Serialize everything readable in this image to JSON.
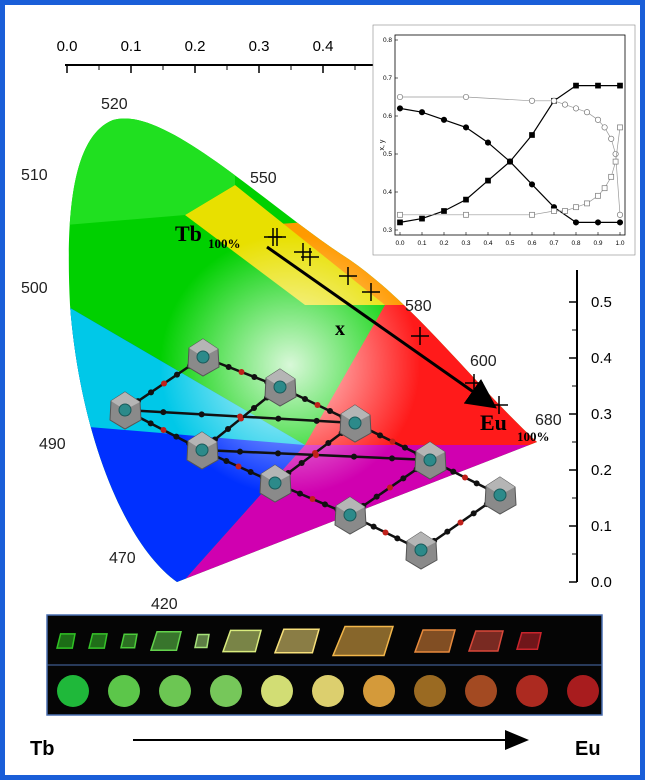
{
  "colors": {
    "frame": "#1a5ed8",
    "arrow": "#000000",
    "strip_bg": "#050505",
    "strip_border": "#4a6fb0"
  },
  "cie": {
    "top_ticks": [
      "0.0",
      "0.1",
      "0.2",
      "0.3",
      "0.4"
    ],
    "right_ticks": [
      "0.5",
      "0.4",
      "0.3",
      "0.2",
      "0.1",
      "0.0"
    ],
    "wavelengths": [
      "520",
      "510",
      "550",
      "500",
      "580",
      "600",
      "680",
      "490",
      "470",
      "420"
    ],
    "start_label": "Tb",
    "start_sub": "100%",
    "end_label": "Eu",
    "end_sub": "100%",
    "arrow_label": "x"
  },
  "chart_data": {
    "type": "line",
    "xlabel": "",
    "ylabel": "x, y",
    "xlim": [
      0.0,
      1.0
    ],
    "ylim": [
      0.3,
      0.8
    ],
    "x_ticks": [
      "0.0",
      "0.1",
      "0.2",
      "0.3",
      "0.4",
      "0.5",
      "0.6",
      "0.7",
      "0.8",
      "0.9",
      "1.0"
    ],
    "y_ticks": [
      "0.3",
      "0.4",
      "0.5",
      "0.6",
      "0.7",
      "0.8"
    ],
    "series": [
      {
        "marker": "filled-square",
        "x": [
          0.0,
          0.1,
          0.2,
          0.3,
          0.4,
          0.5,
          0.6,
          0.7,
          0.8,
          0.9,
          1.0
        ],
        "y": [
          0.32,
          0.33,
          0.35,
          0.38,
          0.43,
          0.48,
          0.55,
          0.64,
          0.68,
          0.68,
          0.68
        ]
      },
      {
        "marker": "filled-circle",
        "x": [
          0.0,
          0.1,
          0.2,
          0.3,
          0.4,
          0.5,
          0.6,
          0.7,
          0.8,
          0.9,
          1.0
        ],
        "y": [
          0.62,
          0.61,
          0.59,
          0.57,
          0.53,
          0.48,
          0.42,
          0.36,
          0.32,
          0.32,
          0.32
        ]
      },
      {
        "marker": "open-circle",
        "x": [
          0.0,
          0.3,
          0.6,
          0.7,
          0.75,
          0.8,
          0.85,
          0.9,
          0.93,
          0.96,
          0.98,
          1.0
        ],
        "y": [
          0.65,
          0.65,
          0.64,
          0.64,
          0.63,
          0.62,
          0.61,
          0.59,
          0.57,
          0.54,
          0.5,
          0.34
        ]
      },
      {
        "marker": "open-square",
        "x": [
          0.0,
          0.3,
          0.6,
          0.7,
          0.75,
          0.8,
          0.85,
          0.9,
          0.93,
          0.96,
          0.98,
          1.0
        ],
        "y": [
          0.34,
          0.34,
          0.34,
          0.35,
          0.35,
          0.36,
          0.37,
          0.39,
          0.41,
          0.44,
          0.48,
          0.57
        ]
      }
    ]
  },
  "strip": {
    "crystal_colors": [
      "#2fc224",
      "#36c42a",
      "#4ccc3a",
      "#63d24c",
      "#a6e27a",
      "#d9ec7e",
      "#f7e07a",
      "#f2b64a",
      "#e88a3c",
      "#d9483a",
      "#c9242c"
    ],
    "dot_colors": [
      "#1fb83a",
      "#5cc64a",
      "#6cc653",
      "#76c75a",
      "#d2dd74",
      "#dccf6e",
      "#d49a3a",
      "#9a6a22",
      "#a34a22",
      "#ac2a20",
      "#a81c1e"
    ]
  },
  "bottom": {
    "left_label": "Tb",
    "right_label": "Eu"
  }
}
